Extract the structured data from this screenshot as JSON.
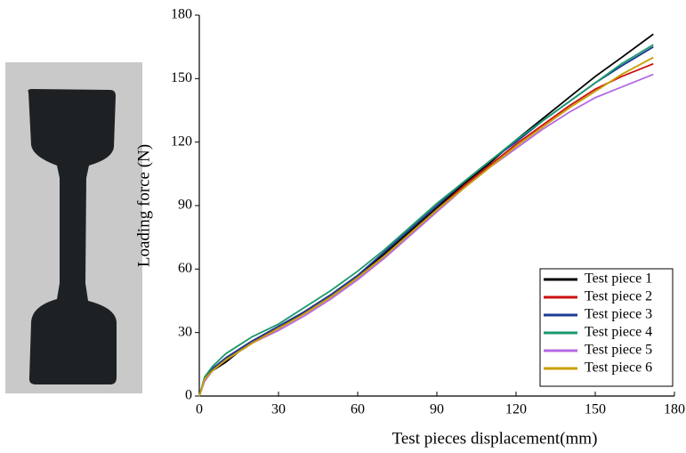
{
  "chart_data": {
    "type": "line",
    "xlabel": "Test pieces displacement(mm)",
    "ylabel": "Loading force (N)",
    "x": [
      0,
      2,
      5,
      10,
      15,
      20,
      30,
      40,
      50,
      60,
      70,
      80,
      90,
      100,
      110,
      120,
      130,
      140,
      150,
      160,
      172
    ],
    "series": [
      {
        "name": "Test piece 1",
        "color": "#000000",
        "values": [
          0,
          8,
          12,
          16,
          21,
          25,
          32,
          40,
          48,
          57,
          67,
          78,
          89,
          100,
          110,
          121,
          131,
          141,
          151,
          160,
          171
        ]
      },
      {
        "name": "Test piece 2",
        "color": "#cc1010",
        "values": [
          0,
          8,
          13,
          18,
          22,
          26,
          32,
          39,
          47,
          56,
          66,
          77,
          88,
          99,
          109,
          119,
          128,
          137,
          145,
          151,
          157
        ]
      },
      {
        "name": "Test piece 3",
        "color": "#1f3a93",
        "values": [
          0,
          8,
          13,
          18,
          22,
          26,
          33,
          40,
          48,
          57,
          68,
          79,
          90,
          101,
          111,
          120,
          130,
          139,
          148,
          156,
          165
        ]
      },
      {
        "name": "Test piece 4",
        "color": "#1a9a6c",
        "values": [
          0,
          9,
          14,
          20,
          24,
          28,
          34,
          42,
          50,
          59,
          69,
          80,
          91,
          101,
          111,
          121,
          130,
          139,
          148,
          157,
          166
        ]
      },
      {
        "name": "Test piece 5",
        "color": "#b36ae2",
        "values": [
          0,
          7,
          12,
          17,
          21,
          25,
          31,
          38,
          46,
          55,
          65,
          76,
          87,
          98,
          108,
          117,
          126,
          134,
          141,
          146,
          152
        ]
      },
      {
        "name": "Test piece 6",
        "color": "#c8a000",
        "values": [
          0,
          8,
          12,
          17,
          21,
          25,
          32,
          39,
          47,
          56,
          66,
          77,
          88,
          98,
          108,
          118,
          127,
          136,
          144,
          152,
          160
        ]
      }
    ],
    "xlim": [
      0,
      180
    ],
    "xticks": [
      0,
      30,
      60,
      90,
      120,
      150,
      180
    ],
    "ylim": [
      0,
      180
    ],
    "yticks": [
      0,
      30,
      60,
      90,
      120,
      150,
      180
    ],
    "legend": "lower right"
  }
}
